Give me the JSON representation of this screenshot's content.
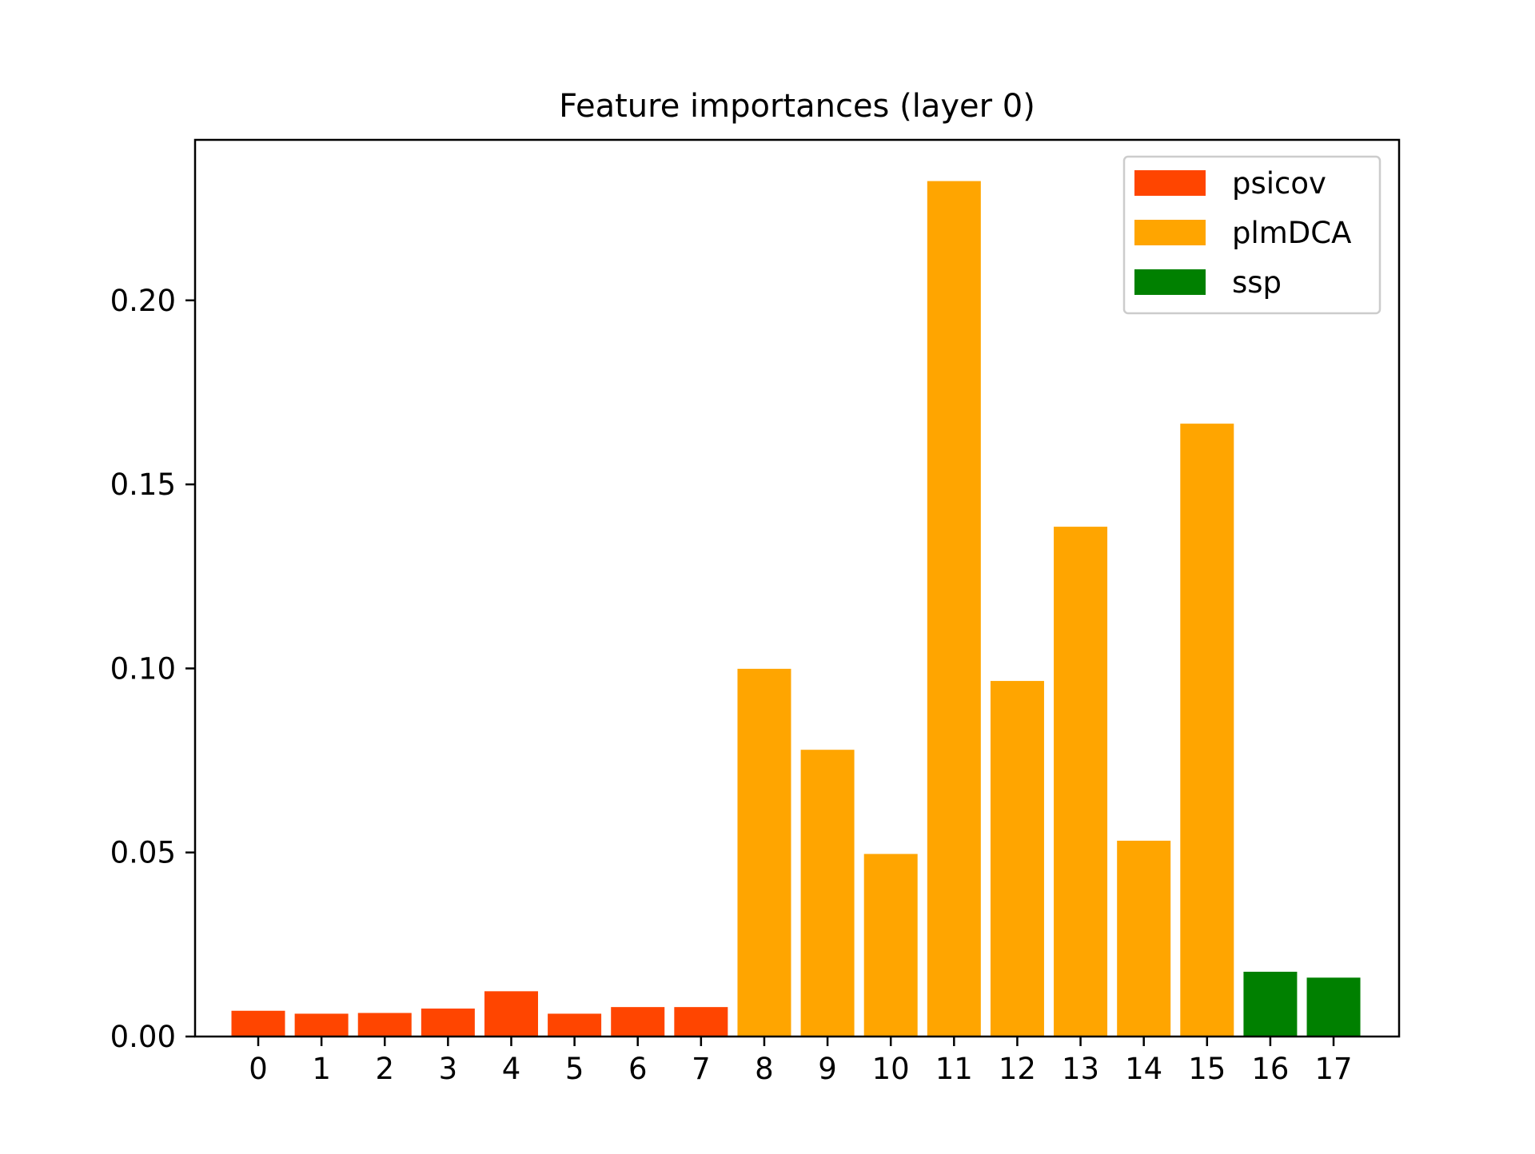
{
  "chart_data": {
    "type": "bar",
    "title": "Feature importances (layer 0)",
    "xlabel": "",
    "ylabel": "",
    "categories": [
      "0",
      "1",
      "2",
      "3",
      "4",
      "5",
      "6",
      "7",
      "8",
      "9",
      "10",
      "11",
      "12",
      "13",
      "14",
      "15",
      "16",
      "17"
    ],
    "values": [
      0.007,
      0.0062,
      0.0064,
      0.0076,
      0.0123,
      0.0062,
      0.008,
      0.008,
      0.0999,
      0.0779,
      0.0496,
      0.2324,
      0.0966,
      0.1385,
      0.0532,
      0.1665,
      0.0176,
      0.016
    ],
    "groups": [
      "psicov",
      "psicov",
      "psicov",
      "psicov",
      "psicov",
      "psicov",
      "psicov",
      "psicov",
      "plmDCA",
      "plmDCA",
      "plmDCA",
      "plmDCA",
      "plmDCA",
      "plmDCA",
      "plmDCA",
      "plmDCA",
      "ssp",
      "ssp"
    ],
    "ylim": [
      0,
      0.2436
    ],
    "yticks": [
      0.0,
      0.05,
      0.1,
      0.15,
      0.2
    ],
    "ytick_labels": [
      "0.00",
      "0.05",
      "0.10",
      "0.15",
      "0.20"
    ],
    "grid": false,
    "legend": {
      "placement": "top-right",
      "entries": [
        {
          "name": "psicov",
          "color": "#ff4500"
        },
        {
          "name": "plmDCA",
          "color": "#ffa500"
        },
        {
          "name": "ssp",
          "color": "#008000"
        }
      ]
    }
  }
}
